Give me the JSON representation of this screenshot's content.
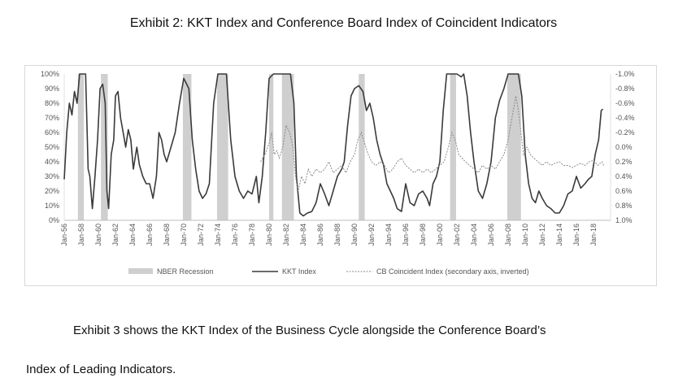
{
  "exhibit_title": "Exhibit 2: KKT Index and Conference Board Index of Coincident Indicators",
  "paragraph_line1": "Exhibit 3 shows the KKT Index of the Business Cycle alongside the Conference Board’s",
  "paragraph_line2": "Index of Leading Indicators.",
  "colors": {
    "recession": "#cfcfcf",
    "kkt": "#3a3a3a",
    "cb": "#8a8a8a"
  },
  "chart_data": {
    "type": "line",
    "title": "Exhibit 2: KKT Index and Conference Board Index of Coincident Indicators",
    "x_range": [
      1956.0,
      2020.0
    ],
    "x_tick_labels": [
      "Jan-56",
      "Jan-58",
      "Jan-60",
      "Jan-62",
      "Jan-64",
      "Jan-66",
      "Jan-68",
      "Jan-70",
      "Jan-72",
      "Jan-74",
      "Jan-76",
      "Jan-78",
      "Jan-80",
      "Jan-82",
      "Jan-84",
      "Jan-86",
      "Jan-88",
      "Jan-90",
      "Jan-92",
      "Jan-94",
      "Jan-96",
      "Jan-98",
      "Jan-00",
      "Jan-02",
      "Jan-04",
      "Jan-06",
      "Jan-08",
      "Jan-10",
      "Jan-12",
      "Jan-14",
      "Jan-16",
      "Jan-18"
    ],
    "y_left": {
      "range": [
        0,
        100
      ],
      "tick_labels": [
        "0%",
        "10%",
        "20%",
        "30%",
        "40%",
        "50%",
        "60%",
        "70%",
        "80%",
        "90%",
        "100%"
      ]
    },
    "y_right": {
      "range": [
        1.0,
        -1.0
      ],
      "inverted": true,
      "tick_labels": [
        "1.0%",
        "0.8%",
        "0.6%",
        "0.4%",
        "0.2%",
        "0.0%",
        "-0.2%",
        "-0.4%",
        "-0.6%",
        "-0.8%",
        "-1.0%"
      ]
    },
    "legend": [
      {
        "name": "NBER Recession",
        "style": "bar"
      },
      {
        "name": "KKT Index",
        "style": "solid"
      },
      {
        "name": "CB Coincident Index (secondary axis, inverted)",
        "style": "dashed"
      }
    ],
    "recessions": [
      [
        1957.6,
        1958.3
      ],
      [
        1960.3,
        1961.1
      ],
      [
        1969.9,
        1970.9
      ],
      [
        1973.9,
        1975.2
      ],
      [
        1980.0,
        1980.5
      ],
      [
        1981.5,
        1982.9
      ],
      [
        1990.5,
        1991.2
      ],
      [
        2001.2,
        2001.9
      ],
      [
        2007.9,
        2009.5
      ]
    ],
    "series": [
      {
        "name": "KKT Index",
        "axis": "left",
        "points": [
          [
            1956.0,
            28
          ],
          [
            1956.3,
            60
          ],
          [
            1956.6,
            80
          ],
          [
            1956.9,
            72
          ],
          [
            1957.2,
            88
          ],
          [
            1957.5,
            80
          ],
          [
            1957.8,
            100
          ],
          [
            1958.5,
            100
          ],
          [
            1958.8,
            35
          ],
          [
            1959.0,
            30
          ],
          [
            1959.3,
            8
          ],
          [
            1959.6,
            30
          ],
          [
            1959.9,
            55
          ],
          [
            1960.2,
            90
          ],
          [
            1960.5,
            93
          ],
          [
            1960.8,
            80
          ],
          [
            1961.0,
            20
          ],
          [
            1961.2,
            8
          ],
          [
            1961.5,
            45
          ],
          [
            1961.8,
            55
          ],
          [
            1962.0,
            85
          ],
          [
            1962.3,
            88
          ],
          [
            1962.6,
            70
          ],
          [
            1962.9,
            60
          ],
          [
            1963.2,
            50
          ],
          [
            1963.5,
            62
          ],
          [
            1963.8,
            55
          ],
          [
            1964.1,
            35
          ],
          [
            1964.5,
            50
          ],
          [
            1964.8,
            38
          ],
          [
            1965.2,
            30
          ],
          [
            1965.6,
            25
          ],
          [
            1966.0,
            25
          ],
          [
            1966.4,
            15
          ],
          [
            1966.8,
            30
          ],
          [
            1967.1,
            60
          ],
          [
            1967.4,
            55
          ],
          [
            1967.7,
            45
          ],
          [
            1968.0,
            40
          ],
          [
            1968.5,
            50
          ],
          [
            1969.0,
            60
          ],
          [
            1969.5,
            80
          ],
          [
            1970.0,
            97
          ],
          [
            1970.6,
            90
          ],
          [
            1971.0,
            55
          ],
          [
            1971.4,
            35
          ],
          [
            1971.8,
            20
          ],
          [
            1972.2,
            15
          ],
          [
            1972.6,
            18
          ],
          [
            1973.0,
            25
          ],
          [
            1973.5,
            80
          ],
          [
            1974.0,
            100
          ],
          [
            1975.0,
            100
          ],
          [
            1975.5,
            55
          ],
          [
            1976.0,
            30
          ],
          [
            1976.5,
            20
          ],
          [
            1977.0,
            15
          ],
          [
            1977.5,
            20
          ],
          [
            1978.0,
            18
          ],
          [
            1978.5,
            30
          ],
          [
            1978.8,
            12
          ],
          [
            1979.2,
            30
          ],
          [
            1979.6,
            60
          ],
          [
            1980.0,
            97
          ],
          [
            1980.5,
            100
          ],
          [
            1981.5,
            100
          ],
          [
            1982.0,
            100
          ],
          [
            1982.5,
            100
          ],
          [
            1982.9,
            80
          ],
          [
            1983.2,
            30
          ],
          [
            1983.6,
            5
          ],
          [
            1984.0,
            3
          ],
          [
            1984.5,
            5
          ],
          [
            1985.0,
            6
          ],
          [
            1985.5,
            12
          ],
          [
            1986.0,
            25
          ],
          [
            1986.5,
            18
          ],
          [
            1987.0,
            10
          ],
          [
            1987.5,
            20
          ],
          [
            1988.0,
            30
          ],
          [
            1988.5,
            35
          ],
          [
            1988.8,
            40
          ],
          [
            1989.2,
            65
          ],
          [
            1989.6,
            85
          ],
          [
            1990.0,
            90
          ],
          [
            1990.5,
            92
          ],
          [
            1991.0,
            88
          ],
          [
            1991.4,
            75
          ],
          [
            1991.8,
            80
          ],
          [
            1992.2,
            70
          ],
          [
            1992.6,
            55
          ],
          [
            1993.0,
            45
          ],
          [
            1993.4,
            38
          ],
          [
            1993.8,
            25
          ],
          [
            1994.2,
            20
          ],
          [
            1994.6,
            15
          ],
          [
            1995.0,
            8
          ],
          [
            1995.5,
            6
          ],
          [
            1996.0,
            25
          ],
          [
            1996.5,
            12
          ],
          [
            1997.0,
            10
          ],
          [
            1997.5,
            18
          ],
          [
            1998.0,
            20
          ],
          [
            1998.5,
            15
          ],
          [
            1998.8,
            10
          ],
          [
            1999.2,
            25
          ],
          [
            1999.6,
            30
          ],
          [
            2000.0,
            40
          ],
          [
            2000.4,
            75
          ],
          [
            2000.8,
            100
          ],
          [
            2001.5,
            100
          ],
          [
            2002.0,
            100
          ],
          [
            2002.5,
            98
          ],
          [
            2002.8,
            100
          ],
          [
            2003.2,
            85
          ],
          [
            2003.6,
            60
          ],
          [
            2004.0,
            40
          ],
          [
            2004.5,
            20
          ],
          [
            2005.0,
            15
          ],
          [
            2005.5,
            25
          ],
          [
            2006.0,
            40
          ],
          [
            2006.5,
            70
          ],
          [
            2007.0,
            82
          ],
          [
            2007.5,
            90
          ],
          [
            2008.0,
            100
          ],
          [
            2009.2,
            100
          ],
          [
            2009.6,
            85
          ],
          [
            2010.0,
            45
          ],
          [
            2010.4,
            25
          ],
          [
            2010.8,
            15
          ],
          [
            2011.2,
            12
          ],
          [
            2011.6,
            20
          ],
          [
            2012.0,
            15
          ],
          [
            2012.5,
            10
          ],
          [
            2013.0,
            8
          ],
          [
            2013.5,
            5
          ],
          [
            2014.0,
            5
          ],
          [
            2014.5,
            10
          ],
          [
            2015.0,
            18
          ],
          [
            2015.5,
            20
          ],
          [
            2016.0,
            30
          ],
          [
            2016.5,
            22
          ],
          [
            2017.0,
            25
          ],
          [
            2017.4,
            28
          ],
          [
            2017.8,
            30
          ],
          [
            2018.2,
            45
          ],
          [
            2018.6,
            55
          ],
          [
            2018.9,
            75
          ],
          [
            2019.1,
            76
          ]
        ]
      },
      {
        "name": "CB Coincident Index (secondary axis, inverted)",
        "axis": "right",
        "points": [
          [
            1979.0,
            0.2
          ],
          [
            1979.5,
            0.1
          ],
          [
            1980.0,
            -0.05
          ],
          [
            1980.3,
            -0.2
          ],
          [
            1980.6,
            0.1
          ],
          [
            1980.9,
            0.05
          ],
          [
            1981.2,
            0.15
          ],
          [
            1981.6,
            0.0
          ],
          [
            1982.0,
            -0.3
          ],
          [
            1982.4,
            -0.2
          ],
          [
            1982.8,
            0.0
          ],
          [
            1983.1,
            0.4
          ],
          [
            1983.4,
            0.6
          ],
          [
            1983.8,
            0.4
          ],
          [
            1984.2,
            0.5
          ],
          [
            1984.6,
            0.3
          ],
          [
            1985.0,
            0.4
          ],
          [
            1985.5,
            0.3
          ],
          [
            1986.0,
            0.35
          ],
          [
            1986.5,
            0.3
          ],
          [
            1987.0,
            0.2
          ],
          [
            1987.5,
            0.35
          ],
          [
            1988.0,
            0.3
          ],
          [
            1988.5,
            0.25
          ],
          [
            1989.0,
            0.35
          ],
          [
            1989.5,
            0.2
          ],
          [
            1990.0,
            0.1
          ],
          [
            1990.4,
            -0.1
          ],
          [
            1990.8,
            -0.2
          ],
          [
            1991.2,
            -0.05
          ],
          [
            1991.6,
            0.1
          ],
          [
            1992.0,
            0.2
          ],
          [
            1992.5,
            0.25
          ],
          [
            1993.0,
            0.2
          ],
          [
            1993.5,
            0.25
          ],
          [
            1994.0,
            0.35
          ],
          [
            1994.5,
            0.3
          ],
          [
            1995.0,
            0.2
          ],
          [
            1995.5,
            0.15
          ],
          [
            1996.0,
            0.25
          ],
          [
            1996.5,
            0.3
          ],
          [
            1997.0,
            0.35
          ],
          [
            1997.5,
            0.3
          ],
          [
            1998.0,
            0.35
          ],
          [
            1998.5,
            0.3
          ],
          [
            1999.0,
            0.35
          ],
          [
            1999.5,
            0.3
          ],
          [
            2000.0,
            0.25
          ],
          [
            2000.5,
            0.2
          ],
          [
            2001.0,
            0.0
          ],
          [
            2001.4,
            -0.2
          ],
          [
            2001.8,
            -0.1
          ],
          [
            2002.2,
            0.1
          ],
          [
            2002.6,
            0.15
          ],
          [
            2003.0,
            0.2
          ],
          [
            2003.5,
            0.25
          ],
          [
            2004.0,
            0.3
          ],
          [
            2004.5,
            0.35
          ],
          [
            2005.0,
            0.25
          ],
          [
            2005.5,
            0.3
          ],
          [
            2006.0,
            0.25
          ],
          [
            2006.5,
            0.3
          ],
          [
            2007.0,
            0.2
          ],
          [
            2007.5,
            0.1
          ],
          [
            2008.0,
            -0.1
          ],
          [
            2008.3,
            -0.3
          ],
          [
            2008.6,
            -0.5
          ],
          [
            2008.9,
            -0.7
          ],
          [
            2009.2,
            -0.5
          ],
          [
            2009.5,
            -0.2
          ],
          [
            2009.8,
            0.1
          ],
          [
            2010.2,
            0.0
          ],
          [
            2010.6,
            0.1
          ],
          [
            2011.0,
            0.15
          ],
          [
            2011.5,
            0.2
          ],
          [
            2012.0,
            0.25
          ],
          [
            2012.5,
            0.2
          ],
          [
            2013.0,
            0.25
          ],
          [
            2013.5,
            0.22
          ],
          [
            2014.0,
            0.2
          ],
          [
            2014.5,
            0.25
          ],
          [
            2015.0,
            0.25
          ],
          [
            2015.5,
            0.28
          ],
          [
            2016.0,
            0.25
          ],
          [
            2016.5,
            0.22
          ],
          [
            2017.0,
            0.25
          ],
          [
            2017.5,
            0.2
          ],
          [
            2018.0,
            0.18
          ],
          [
            2018.5,
            0.25
          ],
          [
            2019.0,
            0.2
          ],
          [
            2019.2,
            0.25
          ]
        ]
      }
    ]
  }
}
